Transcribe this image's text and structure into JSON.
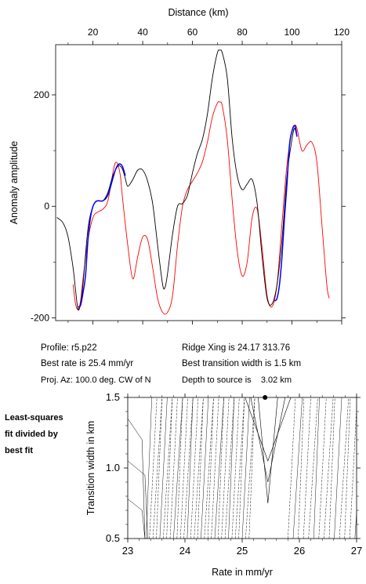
{
  "chart_data": [
    {
      "type": "line",
      "xlabel": "Distance (km)",
      "ylabel": "Anomaly amplitude",
      "xlim": [
        5,
        120
      ],
      "ylim": [
        -205,
        290
      ],
      "xticks": [
        20,
        40,
        60,
        80,
        100,
        120
      ],
      "yticks": [
        -200,
        0,
        200
      ],
      "colors": {
        "observed": "#000000",
        "fit": "#0000ff",
        "model": "#ff0000"
      },
      "series": [
        {
          "role": "observed",
          "color": "#000000",
          "x": [
            5.5,
            8,
            10,
            12,
            13,
            14,
            15,
            16,
            18,
            20,
            22,
            24,
            26,
            28,
            30,
            31,
            32,
            33,
            34,
            36,
            38,
            40,
            42,
            44,
            46,
            48,
            49,
            50,
            52,
            54,
            56,
            58,
            60,
            62,
            64,
            66,
            68,
            70,
            71,
            72,
            74,
            76,
            78,
            80,
            82,
            84,
            86,
            88,
            90,
            92,
            94,
            96,
            98,
            100,
            101,
            102
          ],
          "y": [
            -20,
            -30,
            -55,
            -110,
            -150,
            -185,
            -175,
            -140,
            -40,
            0,
            10,
            10,
            25,
            55,
            72,
            72,
            65,
            50,
            36,
            48,
            65,
            65,
            45,
            5,
            -70,
            -140,
            -145,
            -120,
            -50,
            0,
            5,
            20,
            60,
            95,
            120,
            165,
            230,
            275,
            280,
            275,
            230,
            120,
            55,
            30,
            40,
            48,
            5,
            -90,
            -165,
            -175,
            -140,
            -60,
            55,
            120,
            140,
            125
          ]
        },
        {
          "role": "fit-left",
          "color": "#0000ff",
          "x": [
            14,
            15,
            16,
            17,
            18,
            19,
            20,
            21,
            22,
            24,
            26,
            28,
            29,
            30,
            31,
            32,
            33
          ],
          "y": [
            -180,
            -178,
            -155,
            -125,
            -60,
            -20,
            0,
            8,
            10,
            10,
            20,
            50,
            65,
            74,
            76,
            70,
            55
          ]
        },
        {
          "role": "fit-right",
          "color": "#0000ff",
          "x": [
            93,
            94,
            95,
            96,
            97,
            98,
            99,
            100,
            101,
            101.5,
            102
          ],
          "y": [
            -170,
            -165,
            -140,
            -90,
            -20,
            40,
            110,
            135,
            145,
            140,
            125
          ]
        },
        {
          "role": "model",
          "color": "#ff0000",
          "x": [
            12,
            13,
            14,
            15,
            16,
            18,
            20,
            22,
            24,
            26,
            28,
            29,
            30,
            31,
            32,
            34,
            36,
            38,
            40,
            42,
            44,
            46,
            48,
            50,
            52,
            54,
            56,
            58,
            60,
            62,
            64,
            66,
            68,
            70,
            71,
            72,
            74,
            76,
            78,
            80,
            82,
            84,
            86,
            88,
            90,
            92,
            94,
            96,
            98,
            100,
            101,
            102,
            104,
            106,
            108,
            110,
            112,
            114,
            115
          ],
          "y": [
            -140,
            -175,
            -185,
            -170,
            -130,
            -60,
            -20,
            -10,
            -5,
            10,
            60,
            78,
            75,
            55,
            10,
            -70,
            -130,
            -90,
            -55,
            -60,
            -110,
            -165,
            -190,
            -190,
            -160,
            -70,
            0,
            30,
            45,
            60,
            80,
            115,
            160,
            185,
            187,
            180,
            120,
            10,
            -80,
            -125,
            -100,
            -20,
            -5,
            -75,
            -160,
            -180,
            -140,
            -30,
            75,
            135,
            145,
            140,
            100,
            110,
            115,
            80,
            -30,
            -140,
            -165
          ]
        }
      ]
    },
    {
      "type": "contour",
      "xlabel": "Rate in mm/yr",
      "ylabel": "Transition width in km",
      "xlim": [
        23,
        27
      ],
      "ylim": [
        0.5,
        1.5
      ],
      "xticks": [
        "23",
        "24",
        "25",
        "26",
        "27"
      ],
      "yticks": [
        "0.5",
        "1.0",
        "1.5"
      ],
      "best_fit": {
        "rate": 25.4,
        "width": 1.5
      }
    }
  ],
  "info": {
    "profile": "Profile: r5.p22",
    "best_rate": "Best rate is 25.4 mm/yr",
    "proj_az": "Proj. Az: 100.0 deg. CW of N",
    "ridge_xing": "Ridge Xing is 24.17 313.76",
    "best_width": "Best transition width is 1.5 km",
    "depth": "Depth to source is    3.02 km"
  },
  "side_label": [
    "Least-squares",
    "fit divided by",
    "best fit"
  ]
}
